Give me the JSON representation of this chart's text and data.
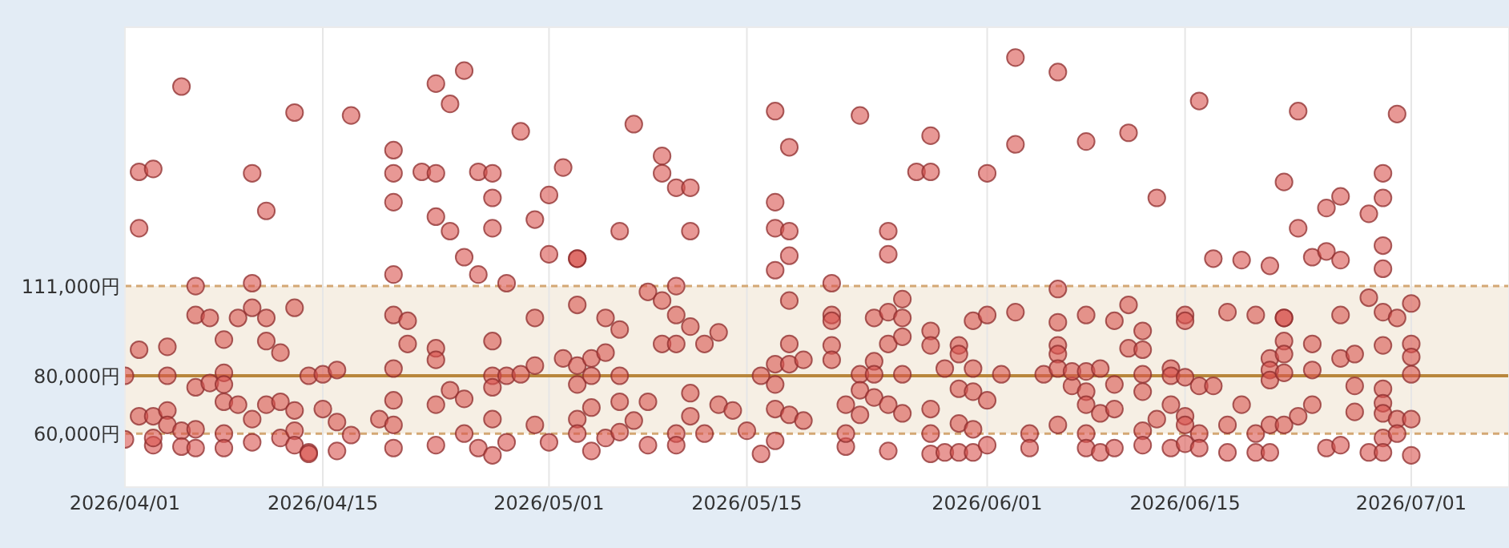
{
  "chart_data": {
    "type": "scatter",
    "xlim": [
      "2026-04-01",
      "2026-07-07T22:00"
    ],
    "ylim": [
      41500,
      200500
    ],
    "xticks": [
      {
        "value": "2026-04-01",
        "label": "2026/04/01"
      },
      {
        "value": "2026-04-15",
        "label": "2026/04/15"
      },
      {
        "value": "2026-05-01",
        "label": "2026/05/01"
      },
      {
        "value": "2026-05-15",
        "label": "2026/05/15"
      },
      {
        "value": "2026-06-01",
        "label": "2026/06/01"
      },
      {
        "value": "2026-06-15",
        "label": "2026/06/15"
      },
      {
        "value": "2026-07-01",
        "label": "2026/07/01"
      }
    ],
    "yticks": [
      {
        "value": 60000,
        "label": "60,000円"
      },
      {
        "value": 80000,
        "label": "80,000円"
      },
      {
        "value": 111000,
        "label": "111,000円"
      }
    ],
    "grid": "x",
    "marker": "circle",
    "bands": [
      {
        "axis": "y",
        "from": 60000,
        "to": 111000,
        "color": "#f6efe4"
      }
    ],
    "ref_lines": [
      {
        "axis": "y",
        "value": 80000,
        "color": "#b8863b",
        "line_style": "solid"
      },
      {
        "axis": "y",
        "value": 60000,
        "color": "#d4a874",
        "line_style": "dashed"
      },
      {
        "axis": "y",
        "value": 111000,
        "color": "#d4a874",
        "line_style": "dashed"
      }
    ],
    "series": [
      {
        "color": "#d9534f",
        "x": [
          "2026-04-01",
          "2026-04-01",
          "2026-04-02",
          "2026-04-02",
          "2026-04-02",
          "2026-04-02",
          "2026-04-03",
          "2026-04-03",
          "2026-04-03",
          "2026-04-03",
          "2026-04-04",
          "2026-04-04",
          "2026-04-04",
          "2026-04-04",
          "2026-04-05",
          "2026-04-05",
          "2026-04-05",
          "2026-04-06",
          "2026-04-06",
          "2026-04-06",
          "2026-04-06",
          "2026-04-06",
          "2026-04-07",
          "2026-04-07",
          "2026-04-08",
          "2026-04-08",
          "2026-04-08",
          "2026-04-08",
          "2026-04-08",
          "2026-04-08",
          "2026-04-09",
          "2026-04-09",
          "2026-04-10",
          "2026-04-10",
          "2026-04-10",
          "2026-04-10",
          "2026-04-10",
          "2026-04-11",
          "2026-04-11",
          "2026-04-11",
          "2026-04-11",
          "2026-04-12",
          "2026-04-12",
          "2026-04-12",
          "2026-04-13",
          "2026-04-13",
          "2026-04-13",
          "2026-04-13",
          "2026-04-13",
          "2026-04-14",
          "2026-04-14",
          "2026-04-14",
          "2026-04-15",
          "2026-04-15",
          "2026-04-16",
          "2026-04-16",
          "2026-04-16",
          "2026-04-17",
          "2026-04-17",
          "2026-04-19",
          "2026-04-20",
          "2026-04-20",
          "2026-04-20",
          "2026-04-20",
          "2026-04-20",
          "2026-04-20",
          "2026-04-20",
          "2026-04-20",
          "2026-04-20",
          "2026-04-21",
          "2026-04-21",
          "2026-04-22",
          "2026-04-23",
          "2026-04-23",
          "2026-04-23",
          "2026-04-23",
          "2026-04-23",
          "2026-04-23",
          "2026-04-23",
          "2026-04-24",
          "2026-04-24",
          "2026-04-24",
          "2026-04-25",
          "2026-04-25",
          "2026-04-25",
          "2026-04-25",
          "2026-04-26",
          "2026-04-26",
          "2026-04-26",
          "2026-04-27",
          "2026-04-27",
          "2026-04-27",
          "2026-04-27",
          "2026-04-27",
          "2026-04-27",
          "2026-04-27",
          "2026-04-27",
          "2026-04-28",
          "2026-04-28",
          "2026-04-28",
          "2026-04-29",
          "2026-04-29",
          "2026-04-30",
          "2026-04-30",
          "2026-04-30",
          "2026-04-30",
          "2026-05-01",
          "2026-05-01",
          "2026-05-01",
          "2026-05-02",
          "2026-05-02",
          "2026-05-03",
          "2026-05-03",
          "2026-05-03",
          "2026-05-03",
          "2026-05-03",
          "2026-05-03",
          "2026-05-03",
          "2026-05-04",
          "2026-05-04",
          "2026-05-04",
          "2026-05-04",
          "2026-05-05",
          "2026-05-05",
          "2026-05-05",
          "2026-05-06",
          "2026-05-06",
          "2026-05-06",
          "2026-05-06",
          "2026-05-06",
          "2026-05-07",
          "2026-05-07",
          "2026-05-08",
          "2026-05-08",
          "2026-05-08",
          "2026-05-09",
          "2026-05-09",
          "2026-05-09",
          "2026-05-09",
          "2026-05-10",
          "2026-05-10",
          "2026-05-10",
          "2026-05-10",
          "2026-05-10",
          "2026-05-10",
          "2026-05-11",
          "2026-05-11",
          "2026-05-11",
          "2026-05-11",
          "2026-05-11",
          "2026-05-12",
          "2026-05-12",
          "2026-05-13",
          "2026-05-13",
          "2026-05-14",
          "2026-05-15",
          "2026-05-16",
          "2026-05-16",
          "2026-05-17",
          "2026-05-17",
          "2026-05-17",
          "2026-05-17",
          "2026-05-17",
          "2026-05-17",
          "2026-05-17",
          "2026-05-17",
          "2026-05-18",
          "2026-05-18",
          "2026-05-18",
          "2026-05-18",
          "2026-05-18",
          "2026-05-18",
          "2026-05-18",
          "2026-05-19",
          "2026-05-19",
          "2026-05-21",
          "2026-05-21",
          "2026-05-21",
          "2026-05-21",
          "2026-05-21",
          "2026-05-22",
          "2026-05-22",
          "2026-05-22",
          "2026-05-23",
          "2026-05-23",
          "2026-05-23",
          "2026-05-23",
          "2026-05-24",
          "2026-05-24",
          "2026-05-24",
          "2026-05-24",
          "2026-05-25",
          "2026-05-25",
          "2026-05-25",
          "2026-05-25",
          "2026-05-25",
          "2026-05-25",
          "2026-05-26",
          "2026-05-26",
          "2026-05-26",
          "2026-05-26",
          "2026-05-26",
          "2026-05-27",
          "2026-05-28",
          "2026-05-28",
          "2026-05-28",
          "2026-05-28",
          "2026-05-28",
          "2026-05-28",
          "2026-05-28",
          "2026-05-29",
          "2026-05-29",
          "2026-05-30",
          "2026-05-30",
          "2026-05-30",
          "2026-05-30",
          "2026-05-30",
          "2026-05-31",
          "2026-05-31",
          "2026-05-31",
          "2026-05-31",
          "2026-05-31",
          "2026-06-01",
          "2026-06-01",
          "2026-06-01",
          "2026-06-01",
          "2026-06-02",
          "2026-06-03",
          "2026-06-03",
          "2026-06-03",
          "2026-06-04",
          "2026-06-04",
          "2026-06-05",
          "2026-06-06",
          "2026-06-06",
          "2026-06-06",
          "2026-06-06",
          "2026-06-06",
          "2026-06-06",
          "2026-06-06",
          "2026-06-07",
          "2026-06-07",
          "2026-06-08",
          "2026-06-08",
          "2026-06-08",
          "2026-06-08",
          "2026-06-08",
          "2026-06-08",
          "2026-06-08",
          "2026-06-09",
          "2026-06-09",
          "2026-06-09",
          "2026-06-10",
          "2026-06-10",
          "2026-06-10",
          "2026-06-10",
          "2026-06-11",
          "2026-06-11",
          "2026-06-11",
          "2026-06-12",
          "2026-06-12",
          "2026-06-12",
          "2026-06-12",
          "2026-06-12",
          "2026-06-12",
          "2026-06-13",
          "2026-06-13",
          "2026-06-14",
          "2026-06-14",
          "2026-06-14",
          "2026-06-14",
          "2026-06-15",
          "2026-06-15",
          "2026-06-15",
          "2026-06-15",
          "2026-06-15",
          "2026-06-15",
          "2026-06-16",
          "2026-06-16",
          "2026-06-16",
          "2026-06-16",
          "2026-06-17",
          "2026-06-17",
          "2026-06-18",
          "2026-06-18",
          "2026-06-18",
          "2026-06-19",
          "2026-06-19",
          "2026-06-20",
          "2026-06-20",
          "2026-06-20",
          "2026-06-21",
          "2026-06-21",
          "2026-06-21",
          "2026-06-21",
          "2026-06-21",
          "2026-06-21",
          "2026-06-22",
          "2026-06-22",
          "2026-06-22",
          "2026-06-22",
          "2026-06-22",
          "2026-06-22",
          "2026-06-22",
          "2026-06-23",
          "2026-06-23",
          "2026-06-23",
          "2026-06-24",
          "2026-06-24",
          "2026-06-24",
          "2026-06-24",
          "2026-06-25",
          "2026-06-25",
          "2026-06-25",
          "2026-06-26",
          "2026-06-26",
          "2026-06-26",
          "2026-06-26",
          "2026-06-26",
          "2026-06-27",
          "2026-06-27",
          "2026-06-27",
          "2026-06-28",
          "2026-06-28",
          "2026-06-28",
          "2026-06-29",
          "2026-06-29",
          "2026-06-29",
          "2026-06-29",
          "2026-06-29",
          "2026-06-29",
          "2026-06-29",
          "2026-06-29",
          "2026-06-29",
          "2026-06-29",
          "2026-06-29",
          "2026-06-30",
          "2026-06-30",
          "2026-06-30",
          "2026-06-30",
          "2026-07-01",
          "2026-07-01",
          "2026-07-01",
          "2026-07-01",
          "2026-07-01",
          "2026-07-01"
        ],
        "values": [
          58000,
          80000,
          150500,
          131000,
          89000,
          66000,
          151500,
          66000,
          56000,
          58500,
          80000,
          68000,
          90000,
          63000,
          180000,
          61000,
          55500,
          111000,
          101000,
          76000,
          61500,
          55000,
          100000,
          77500,
          92500,
          81000,
          77000,
          71000,
          60000,
          55000,
          70000,
          100000,
          112000,
          103500,
          150000,
          65000,
          57000,
          137000,
          100000,
          92000,
          70000,
          71000,
          88000,
          58500,
          171000,
          103500,
          68000,
          61000,
          56000,
          80000,
          53500,
          53000,
          80500,
          68500,
          82000,
          64000,
          54000,
          170000,
          59500,
          65000,
          158000,
          150000,
          140000,
          115000,
          101000,
          82500,
          71500,
          63000,
          55000,
          99000,
          91000,
          150500,
          150000,
          135000,
          181000,
          89500,
          85500,
          70000,
          56000,
          174000,
          130000,
          75000,
          185500,
          121000,
          72000,
          60000,
          115000,
          55000,
          150500,
          150000,
          141500,
          131000,
          92000,
          80000,
          76000,
          65000,
          52500,
          112000,
          80000,
          57000,
          164500,
          80500,
          134000,
          100000,
          83500,
          63000,
          142500,
          122000,
          57000,
          152000,
          86000,
          120500,
          120500,
          104500,
          83500,
          77000,
          65000,
          60000,
          86000,
          80000,
          69000,
          54000,
          100000,
          88000,
          58500,
          96000,
          80000,
          71000,
          60500,
          130000,
          167000,
          64500,
          109000,
          71000,
          56000,
          106000,
          156000,
          150000,
          91000,
          145000,
          111000,
          101000,
          91000,
          60000,
          56000,
          145000,
          130000,
          97000,
          74000,
          66000,
          91000,
          60000,
          95000,
          70000,
          68000,
          61000,
          53000,
          80000,
          171500,
          140000,
          131000,
          116500,
          84000,
          77000,
          68500,
          57500,
          159000,
          130000,
          121500,
          106000,
          91000,
          84000,
          66500,
          85500,
          64500,
          112000,
          101000,
          99000,
          90500,
          85500,
          70000,
          55500,
          60000,
          170000,
          80500,
          75000,
          66500,
          100000,
          85000,
          80500,
          72500,
          130000,
          122000,
          102000,
          91000,
          70000,
          54000,
          106500,
          100000,
          93500,
          80500,
          67000,
          150500,
          150500,
          163000,
          68500,
          60000,
          95500,
          90500,
          53000,
          53500,
          82500,
          53500,
          90500,
          87500,
          75500,
          63500,
          53500,
          82500,
          74500,
          61500,
          99000,
          150000,
          71500,
          56000,
          101000,
          80500,
          190000,
          160000,
          102000,
          60000,
          55000,
          80500,
          185000,
          110000,
          98500,
          90500,
          87500,
          82500,
          63000,
          76500,
          81500,
          161000,
          101000,
          81500,
          74500,
          70000,
          60000,
          55000,
          67000,
          53500,
          82500,
          99000,
          77000,
          68500,
          55000,
          164000,
          104500,
          89500,
          95500,
          89000,
          80500,
          74500,
          61000,
          56000,
          141500,
          65000,
          82500,
          80000,
          70000,
          55000,
          101000,
          99000,
          79500,
          66000,
          63000,
          56500,
          175000,
          76500,
          60000,
          55000,
          120500,
          76500,
          102000,
          63000,
          53500,
          120000,
          70000,
          101000,
          53500,
          60000,
          118000,
          86000,
          82000,
          78500,
          63000,
          53500,
          147000,
          100000,
          100000,
          92000,
          87500,
          81000,
          63000,
          171500,
          131000,
          66000,
          121000,
          91000,
          82000,
          70000,
          138000,
          123000,
          55000,
          142000,
          120000,
          101000,
          86000,
          56000,
          87500,
          76500,
          67500,
          136000,
          107000,
          53500,
          150000,
          141500,
          125000,
          117000,
          102000,
          90500,
          75500,
          70500,
          67000,
          58500,
          53500,
          170500,
          100000,
          65000,
          60000,
          105000,
          91000,
          86500,
          80500,
          65000,
          52500
        ]
      }
    ]
  }
}
